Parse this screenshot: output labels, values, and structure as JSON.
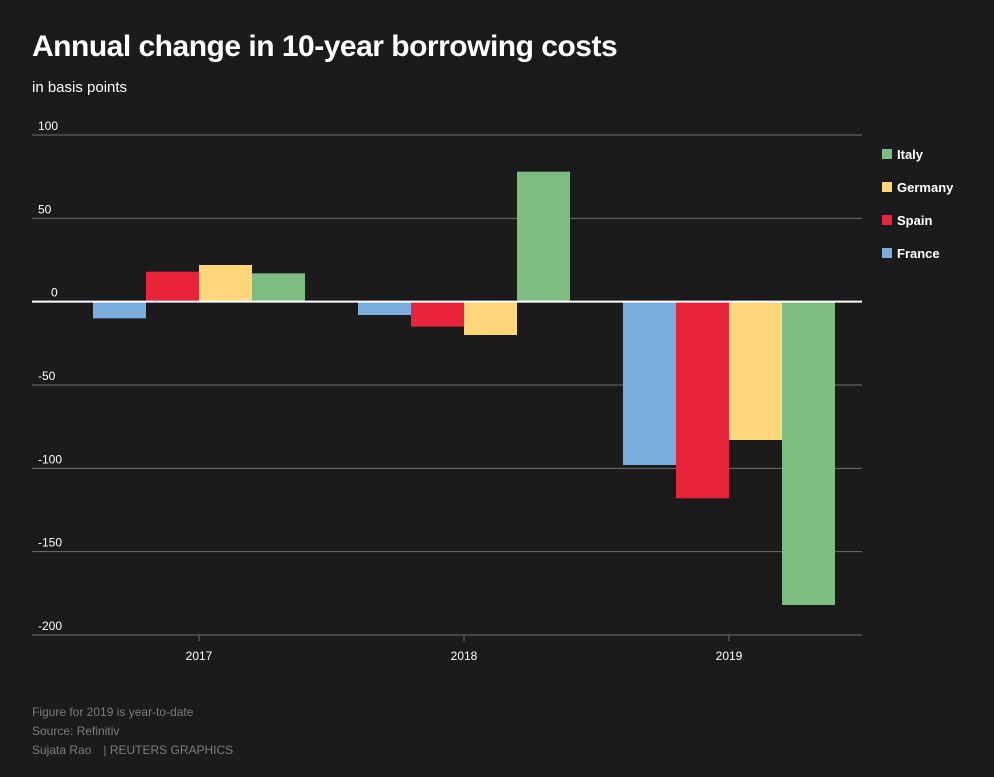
{
  "header": {
    "title": "Annual change in 10-year borrowing costs",
    "subtitle": "in basis points"
  },
  "footer": {
    "note": "Figure for 2019 is year-to-date",
    "source": "Source: Refinitiv",
    "author": "Sujata Rao",
    "agency": "| REUTERS GRAPHICS"
  },
  "colors": {
    "background": "#1b1a1c",
    "France": "#7badde",
    "Spain": "#e8233a",
    "Germany": "#ffd67a",
    "Italy": "#7ebd82",
    "grid": "#6e6d6f",
    "zero": "#ffffff"
  },
  "chart_data": {
    "type": "bar",
    "title": "Annual change in 10-year borrowing costs",
    "subtitle": "in basis points",
    "xlabel": "",
    "ylabel": "",
    "categories": [
      "2017",
      "2018",
      "2019"
    ],
    "series": [
      {
        "name": "France",
        "values": [
          -10,
          -8,
          -98
        ]
      },
      {
        "name": "Spain",
        "values": [
          18,
          -15,
          -118
        ]
      },
      {
        "name": "Germany",
        "values": [
          22,
          -20,
          -83
        ]
      },
      {
        "name": "Italy",
        "values": [
          17,
          78,
          -182
        ]
      }
    ],
    "legend_order": [
      "Italy",
      "Germany",
      "Spain",
      "France"
    ],
    "yticks": [
      100,
      50,
      0,
      -50,
      -100,
      -150,
      -200
    ],
    "ytick_labels": [
      "100",
      "50",
      "0",
      "-50",
      "-100",
      "-150",
      "-200"
    ],
    "ylim": [
      -200,
      100
    ],
    "grid": true,
    "legend_position": "right"
  }
}
